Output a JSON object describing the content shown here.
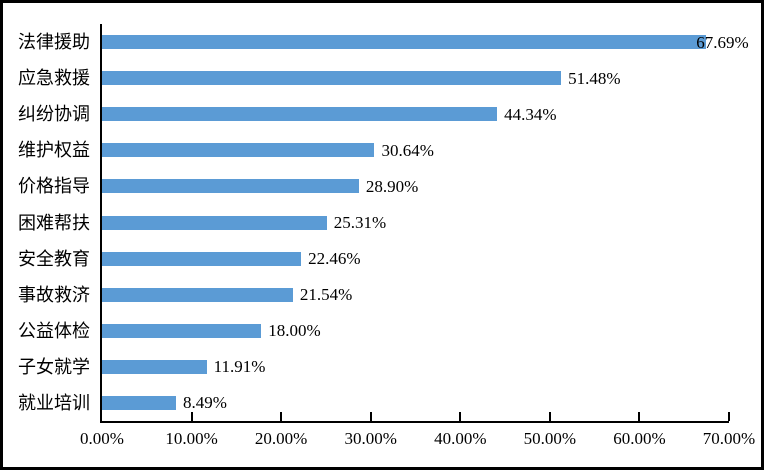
{
  "chart_data": {
    "type": "bar",
    "orientation": "horizontal",
    "title": "",
    "xlabel": "",
    "ylabel": "",
    "categories": [
      "法律援助",
      "应急救援",
      "纠纷协调",
      "维护权益",
      "价格指导",
      "困难帮扶",
      "安全教育",
      "事故救济",
      "公益体检",
      "子女就学",
      "就业培训"
    ],
    "values": [
      67.69,
      51.48,
      44.34,
      30.64,
      28.9,
      25.31,
      22.46,
      21.54,
      18.0,
      11.91,
      8.49
    ],
    "value_labels": [
      "67.69%",
      "51.48%",
      "44.34%",
      "30.64%",
      "28.90%",
      "25.31%",
      "22.46%",
      "21.54%",
      "18.00%",
      "11.91%",
      "8.49%"
    ],
    "x_ticks": [
      {
        "value": 0,
        "label": "0.00%"
      },
      {
        "value": 10,
        "label": "10.00%"
      },
      {
        "value": 20,
        "label": "20.00%"
      },
      {
        "value": 30,
        "label": "30.00%"
      },
      {
        "value": 40,
        "label": "40.00%"
      },
      {
        "value": 50,
        "label": "50.00%"
      },
      {
        "value": 60,
        "label": "60.00%"
      },
      {
        "value": 70,
        "label": "70.00%"
      }
    ],
    "xlim": [
      0,
      70
    ],
    "grid": false,
    "legend": null,
    "bar_color": "#5B9BD5",
    "axis_color": "#000000",
    "text_color": "#000000",
    "frame_color": "#000000",
    "background_color": "#FFFFFF"
  }
}
